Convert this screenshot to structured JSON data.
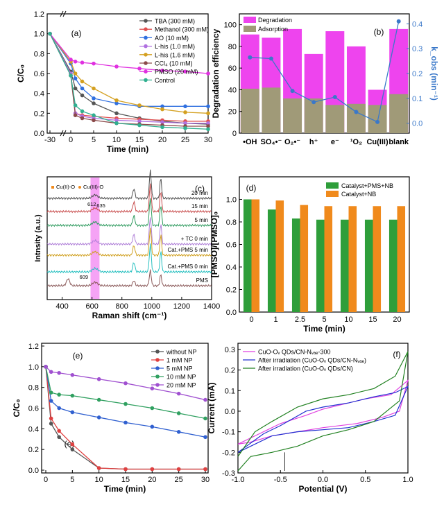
{
  "figure": {
    "colors": {
      "tba": "#555555",
      "methanol": "#e05050",
      "ao": "#3070e0",
      "lhis1": "#b070e0",
      "lhis16": "#d4a020",
      "ccl4": "#8b4a4a",
      "pmso": "#e030e0",
      "control": "#30b090",
      "degradation": "#ee44ee",
      "adsorption": "#a09a78",
      "kobs": "#3a78c9",
      "green": "#2e9e3a",
      "orange": "#f08a1c",
      "r20": "#505050",
      "r15": "#c84c4c",
      "r5": "#2e9a5e",
      "rtc": "#b080d8",
      "rcat5": "#d0a020",
      "rcat0": "#28c0c0",
      "rpms": "#8b5a5a",
      "without": "#555555",
      "np1": "#e04040",
      "np5": "#3060d0",
      "np10": "#30a060",
      "np20": "#a050d0",
      "cv1": "#e040e0",
      "cv2": "#2030d0",
      "cv3": "#208020",
      "highlight": "#ee66ee"
    }
  },
  "chart_data": [
    {
      "panel": "(a)",
      "type": "line",
      "xlabel": "Time (min)",
      "ylabel": "C/C₀",
      "xticks": [
        "-30",
        "0",
        "5",
        "10",
        "15",
        "20",
        "25",
        "30"
      ],
      "yticks": [
        "0.0",
        "0.2",
        "0.4",
        "0.6",
        "0.8",
        "1.0",
        "1.2"
      ],
      "ylim": [
        0,
        1.2
      ],
      "x": [
        -30,
        0,
        1,
        2.5,
        5,
        10,
        15,
        20,
        25,
        30
      ],
      "series": [
        {
          "name": "TBA (300 mM)",
          "color": "tba",
          "values": [
            1.0,
            0.62,
            0.45,
            0.38,
            0.3,
            0.2,
            0.15,
            0.12,
            0.1,
            0.09
          ]
        },
        {
          "name": "Methanol (300 mM)",
          "color": "methanol",
          "values": [
            1.0,
            0.6,
            0.2,
            0.18,
            0.17,
            0.15,
            0.14,
            0.13,
            0.12,
            0.12
          ]
        },
        {
          "name": "AO (10 mM)",
          "color": "ao",
          "values": [
            1.0,
            0.7,
            0.55,
            0.45,
            0.35,
            0.3,
            0.27,
            0.27,
            0.27,
            0.27
          ]
        },
        {
          "name": "L-his (1.0 mM)",
          "color": "lhis1",
          "values": [
            1.0,
            0.6,
            0.2,
            0.17,
            0.15,
            0.13,
            0.12,
            0.11,
            0.1,
            0.1
          ]
        },
        {
          "name": "L-his (1.6 mM)",
          "color": "lhis16",
          "values": [
            1.0,
            0.72,
            0.6,
            0.52,
            0.45,
            0.33,
            0.28,
            0.24,
            0.21,
            0.2
          ]
        },
        {
          "name": "CCl₄ (10 mM)",
          "color": "ccl4",
          "values": [
            1.0,
            0.58,
            0.18,
            0.15,
            0.13,
            0.1,
            0.09,
            0.08,
            0.07,
            0.07
          ]
        },
        {
          "name": "PMSO (20 mM)",
          "color": "pmso",
          "values": [
            1.0,
            0.74,
            0.72,
            0.71,
            0.7,
            0.67,
            0.65,
            0.63,
            0.62,
            0.6
          ]
        },
        {
          "name": "Control",
          "color": "control",
          "values": [
            1.0,
            0.58,
            0.28,
            0.22,
            0.18,
            0.1,
            0.08,
            0.06,
            0.05,
            0.04
          ]
        }
      ]
    },
    {
      "panel": "(b)",
      "type": "bar",
      "ylabel": "Degradation efficiency",
      "y2label": "k_obs (min⁻¹)",
      "categories": [
        "•OH",
        "SO₄•⁻",
        "O₂•⁻",
        "h⁺",
        "e⁻",
        "¹O₂",
        "Cu(III)",
        "blank"
      ],
      "yticks": [
        "0",
        "20",
        "40",
        "60",
        "80",
        "100"
      ],
      "y2ticks": [
        "0.0",
        "0.1",
        "0.2",
        "0.3",
        "0.4"
      ],
      "ylim": [
        0,
        110
      ],
      "y2lim": [
        -0.04,
        0.44
      ],
      "series": [
        {
          "name": "Degradation",
          "color": "degradation",
          "values": [
            91,
            88,
            96,
            73,
            94,
            80,
            40,
            96
          ]
        },
        {
          "name": "Adsorption",
          "color": "adsorption",
          "values": [
            41,
            42,
            32,
            32,
            26,
            27,
            26,
            36
          ]
        },
        {
          "name": "k_obs",
          "color": "kobs",
          "values": [
            0.265,
            0.26,
            0.13,
            0.085,
            0.105,
            0.045,
            0.005,
            0.41
          ]
        }
      ]
    },
    {
      "panel": "(c)",
      "type": "line",
      "xlabel": "Raman shift (cm⁻¹)",
      "ylabel": "Intnsity (a.u.)",
      "xticks": [
        "400",
        "600",
        "800",
        "1000",
        "1200",
        "1400"
      ],
      "xlim": [
        300,
        1400
      ],
      "legend": [
        "Cu(II)-O",
        "Cu(III)-O"
      ],
      "annotations": [
        "612",
        "635",
        "609"
      ],
      "peaks_cm": [
        612,
        635,
        880,
        990,
        1060
      ],
      "series": [
        {
          "name": "20 min",
          "color": "r20"
        },
        {
          "name": "15 min",
          "color": "r15"
        },
        {
          "name": "5 min",
          "color": "r5"
        },
        {
          "name": "+ TC 0 min",
          "color": "rtc"
        },
        {
          "name": "Cat.+PMS 5 min",
          "color": "rcat5"
        },
        {
          "name": "Cat.+PMS 0 min",
          "color": "rcat0"
        },
        {
          "name": "PMS",
          "color": "rpms"
        }
      ]
    },
    {
      "panel": "(d)",
      "type": "bar",
      "xlabel": "Time (min)",
      "ylabel": "[PMSO]/[PMSO]₀",
      "categories": [
        "0",
        "1",
        "2.5",
        "5",
        "10",
        "15",
        "20"
      ],
      "yticks": [
        "0.0",
        "0.2",
        "0.4",
        "0.6",
        "0.8",
        "1.0"
      ],
      "ylim": [
        0,
        1.2
      ],
      "series": [
        {
          "name": "Catalyst+PMS+NB",
          "color": "green",
          "values": [
            1.0,
            0.91,
            0.83,
            0.82,
            0.82,
            0.82,
            0.82
          ]
        },
        {
          "name": "Catalyst+NB",
          "color": "orange",
          "values": [
            1.0,
            0.99,
            0.95,
            0.94,
            0.94,
            0.94,
            0.94
          ]
        }
      ]
    },
    {
      "panel": "(e)",
      "type": "line",
      "xlabel": "Time (min)",
      "ylabel": "C/C₀",
      "xticks": [
        "0",
        "5",
        "10",
        "15",
        "20",
        "25",
        "30"
      ],
      "yticks": [
        "0.0",
        "0.2",
        "0.4",
        "0.6",
        "0.8",
        "1.0",
        "1.2"
      ],
      "xlim": [
        0,
        30
      ],
      "ylim": [
        0,
        1.2
      ],
      "inner_label": "(e)",
      "x": [
        0,
        1,
        2.5,
        5,
        10,
        15,
        20,
        25,
        30
      ],
      "series": [
        {
          "name": "without NP",
          "color": "without",
          "values": [
            1.0,
            0.45,
            0.32,
            0.2,
            0.02,
            0.01,
            0.01,
            0.01,
            0.01
          ]
        },
        {
          "name": "1 mM NP",
          "color": "np1",
          "values": [
            1.0,
            0.5,
            0.38,
            0.25,
            0.02,
            0.01,
            0.01,
            0.01,
            0.01
          ]
        },
        {
          "name": "5 mM NP",
          "color": "np5",
          "values": [
            1.0,
            0.67,
            0.6,
            0.56,
            0.51,
            0.46,
            0.42,
            0.37,
            0.32
          ]
        },
        {
          "name": "10 mM NP",
          "color": "np10",
          "values": [
            1.0,
            0.75,
            0.73,
            0.72,
            0.68,
            0.64,
            0.6,
            0.55,
            0.5
          ]
        },
        {
          "name": "20 mM NP",
          "color": "np20",
          "values": [
            1.0,
            0.95,
            0.94,
            0.92,
            0.88,
            0.84,
            0.79,
            0.74,
            0.68
          ]
        }
      ]
    },
    {
      "panel": "(f)",
      "type": "line",
      "xlabel": "Potential (V)",
      "ylabel": "Current (mA)",
      "xticks": [
        "-1.0",
        "-0.5",
        "0.0",
        "0.5",
        "1.0"
      ],
      "yticks": [
        "-0.3",
        "-0.2",
        "-0.1",
        "0.0",
        "0.1",
        "0.2",
        "0.3"
      ],
      "xlim": [
        -1.0,
        1.0
      ],
      "ylim": [
        -0.3,
        0.33
      ],
      "series": [
        {
          "name": "CuO-Oᵥ QDs/CN-Nᵥₐₑ-300",
          "color": "cv1",
          "upper": [
            [
              -1.0,
              -0.16
            ],
            [
              -0.7,
              -0.1
            ],
            [
              -0.5,
              -0.06
            ],
            [
              -0.2,
              -0.02
            ],
            [
              0.0,
              0.01
            ],
            [
              0.2,
              0.03
            ],
            [
              0.5,
              0.06
            ],
            [
              0.8,
              0.08
            ],
            [
              1.0,
              0.15
            ]
          ],
          "lower": [
            [
              1.0,
              0.15
            ],
            [
              0.9,
              0.0
            ],
            [
              0.7,
              -0.03
            ],
            [
              0.4,
              -0.06
            ],
            [
              0.0,
              -0.08
            ],
            [
              -0.3,
              -0.1
            ],
            [
              -0.6,
              -0.12
            ],
            [
              -0.85,
              -0.15
            ],
            [
              -1.0,
              -0.16
            ]
          ]
        },
        {
          "name": "After irradiation (CuO-Oᵥ QDs/CN-Nᵥₐₑ)",
          "color": "cv2",
          "upper": [
            [
              -1.0,
              -0.2
            ],
            [
              -0.7,
              -0.11
            ],
            [
              -0.5,
              -0.07
            ],
            [
              -0.2,
              0.0
            ],
            [
              0.0,
              0.02
            ],
            [
              0.3,
              0.04
            ],
            [
              0.6,
              0.07
            ],
            [
              0.85,
              0.09
            ],
            [
              1.0,
              0.12
            ]
          ],
          "lower": [
            [
              1.0,
              0.12
            ],
            [
              0.85,
              -0.02
            ],
            [
              0.6,
              -0.05
            ],
            [
              0.3,
              -0.08
            ],
            [
              0.0,
              -0.09
            ],
            [
              -0.3,
              -0.1
            ],
            [
              -0.6,
              -0.12
            ],
            [
              -0.85,
              -0.17
            ],
            [
              -1.0,
              -0.2
            ]
          ]
        },
        {
          "name": "After irradiation (CuO-Oᵥ QDs/CN)",
          "color": "cv3",
          "upper": [
            [
              -1.0,
              -0.22
            ],
            [
              -0.8,
              -0.1
            ],
            [
              -0.6,
              -0.05
            ],
            [
              -0.3,
              0.02
            ],
            [
              0.0,
              0.06
            ],
            [
              0.3,
              0.08
            ],
            [
              0.6,
              0.11
            ],
            [
              0.85,
              0.17
            ],
            [
              1.0,
              0.29
            ]
          ],
          "lower": [
            [
              1.0,
              0.29
            ],
            [
              0.9,
              0.05
            ],
            [
              0.6,
              -0.05
            ],
            [
              0.3,
              -0.09
            ],
            [
              0.0,
              -0.12
            ],
            [
              -0.3,
              -0.17
            ],
            [
              -0.6,
              -0.2
            ],
            [
              -0.85,
              -0.22
            ],
            [
              -1.0,
              -0.29
            ]
          ]
        }
      ]
    }
  ]
}
